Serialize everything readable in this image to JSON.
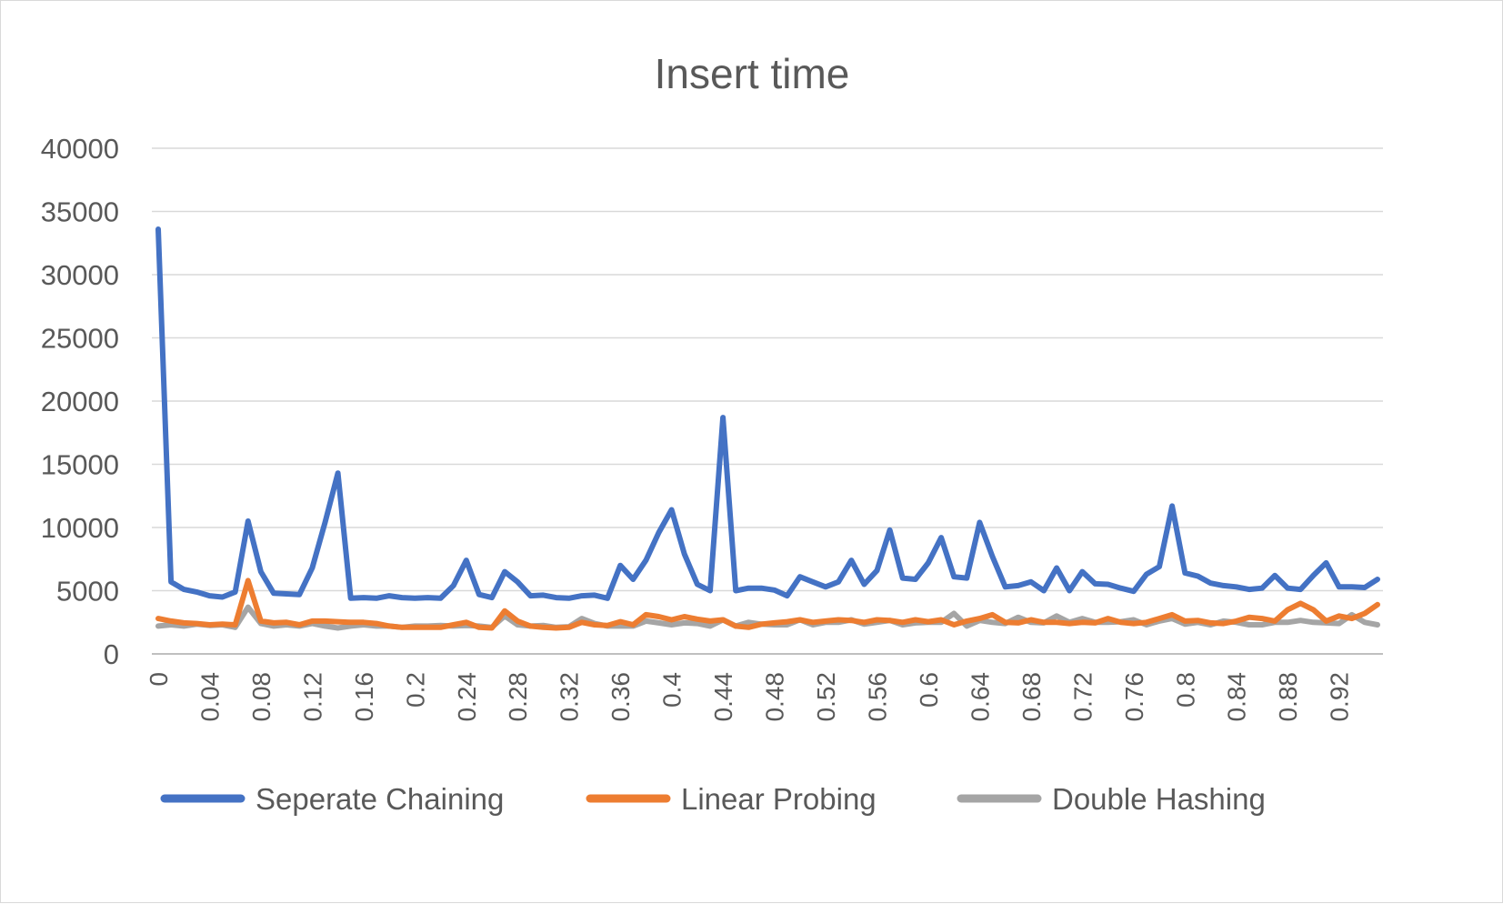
{
  "chart_data": {
    "type": "line",
    "title": "Insert time",
    "xlabel": "",
    "ylabel": "",
    "ylim": [
      0,
      40000
    ],
    "y_ticks": [
      0,
      5000,
      10000,
      15000,
      20000,
      25000,
      30000,
      35000,
      40000
    ],
    "y_tick_labels": [
      "0",
      "5000",
      "10000",
      "15000",
      "20000",
      "25000",
      "30000",
      "35000",
      "40000"
    ],
    "x_tick_labels": [
      "0",
      "0.04",
      "0.08",
      "0.12",
      "0.16",
      "0.2",
      "0.24",
      "0.28",
      "0.32",
      "0.36",
      "0.4",
      "0.44",
      "0.48",
      "0.52",
      "0.56",
      "0.6",
      "0.64",
      "0.68",
      "0.72",
      "0.76",
      "0.8",
      "0.84",
      "0.88",
      "0.92"
    ],
    "grid": true,
    "legend_position": "bottom",
    "x": [
      0,
      0.01,
      0.02,
      0.03,
      0.04,
      0.05,
      0.06,
      0.07,
      0.08,
      0.09,
      0.1,
      0.11,
      0.12,
      0.13,
      0.14,
      0.15,
      0.16,
      0.17,
      0.18,
      0.19,
      0.2,
      0.21,
      0.22,
      0.23,
      0.24,
      0.25,
      0.26,
      0.27,
      0.28,
      0.29,
      0.3,
      0.31,
      0.32,
      0.33,
      0.34,
      0.35,
      0.36,
      0.37,
      0.38,
      0.39,
      0.4,
      0.41,
      0.42,
      0.43,
      0.44,
      0.45,
      0.46,
      0.47,
      0.48,
      0.49,
      0.5,
      0.51,
      0.52,
      0.53,
      0.54,
      0.55,
      0.56,
      0.57,
      0.58,
      0.59,
      0.6,
      0.61,
      0.62,
      0.63,
      0.64,
      0.65,
      0.66,
      0.67,
      0.68,
      0.69,
      0.7,
      0.71,
      0.72,
      0.73,
      0.74,
      0.75,
      0.76,
      0.77,
      0.78,
      0.79,
      0.8,
      0.81,
      0.82,
      0.83,
      0.84,
      0.85,
      0.86,
      0.87,
      0.88,
      0.89,
      0.9,
      0.91,
      0.92,
      0.93,
      0.94,
      0.95
    ],
    "series": [
      {
        "name": "Seperate Chaining",
        "color": "#4472c4",
        "values": [
          33600,
          5700,
          5100,
          4900,
          4600,
          4500,
          4900,
          10500,
          6500,
          4800,
          4750,
          4700,
          6800,
          10400,
          14300,
          4400,
          4450,
          4400,
          4600,
          4450,
          4400,
          4450,
          4400,
          5400,
          7400,
          4700,
          4450,
          6500,
          5700,
          4600,
          4650,
          4450,
          4400,
          4600,
          4650,
          4400,
          7000,
          5900,
          7400,
          9600,
          11400,
          7900,
          5500,
          5000,
          18700,
          5000,
          5200,
          5200,
          5050,
          4600,
          6100,
          5700,
          5300,
          5700,
          7400,
          5500,
          6600,
          9800,
          6000,
          5900,
          7200,
          9200,
          6100,
          6000,
          10400,
          7700,
          5300,
          5400,
          5700,
          5000,
          6800,
          5000,
          6500,
          5550,
          5500,
          5200,
          4950,
          6300,
          6900,
          11700,
          6400,
          6150,
          5600,
          5400,
          5300,
          5100,
          5200,
          6200,
          5200,
          5100,
          6200,
          7200,
          5300,
          5300,
          5250,
          5900
        ]
      },
      {
        "name": "Linear Probing",
        "color": "#ed7d31",
        "values": [
          2800,
          2600,
          2450,
          2400,
          2300,
          2350,
          2300,
          5800,
          2600,
          2450,
          2500,
          2300,
          2600,
          2600,
          2550,
          2500,
          2500,
          2400,
          2200,
          2100,
          2100,
          2100,
          2100,
          2300,
          2500,
          2100,
          2050,
          3400,
          2600,
          2200,
          2100,
          2050,
          2100,
          2500,
          2300,
          2250,
          2550,
          2300,
          3100,
          2950,
          2700,
          2950,
          2750,
          2600,
          2700,
          2200,
          2100,
          2350,
          2450,
          2550,
          2700,
          2500,
          2600,
          2700,
          2650,
          2500,
          2700,
          2650,
          2500,
          2700,
          2550,
          2700,
          2300,
          2600,
          2800,
          3100,
          2500,
          2450,
          2700,
          2500,
          2500,
          2400,
          2500,
          2450,
          2800,
          2500,
          2400,
          2500,
          2800,
          3100,
          2600,
          2650,
          2450,
          2400,
          2600,
          2900,
          2800,
          2600,
          3500,
          4000,
          3500,
          2600,
          3000,
          2800,
          3200,
          3900
        ]
      },
      {
        "name": "Double Hashing",
        "color": "#a5a5a5",
        "values": [
          2200,
          2300,
          2200,
          2350,
          2250,
          2300,
          2100,
          3700,
          2400,
          2200,
          2300,
          2200,
          2400,
          2200,
          2050,
          2200,
          2300,
          2200,
          2200,
          2100,
          2200,
          2200,
          2250,
          2200,
          2250,
          2200,
          2100,
          3000,
          2300,
          2200,
          2250,
          2100,
          2150,
          2800,
          2400,
          2200,
          2200,
          2200,
          2600,
          2450,
          2300,
          2450,
          2400,
          2200,
          2700,
          2200,
          2500,
          2350,
          2300,
          2300,
          2700,
          2300,
          2500,
          2500,
          2700,
          2350,
          2500,
          2650,
          2300,
          2450,
          2500,
          2500,
          3200,
          2200,
          2650,
          2500,
          2400,
          2900,
          2500,
          2450,
          3000,
          2500,
          2800,
          2500,
          2500,
          2550,
          2700,
          2300,
          2600,
          2800,
          2350,
          2500,
          2300,
          2600,
          2500,
          2300,
          2300,
          2500,
          2500,
          2650,
          2500,
          2450,
          2400,
          3100,
          2500,
          2300
        ]
      }
    ]
  }
}
